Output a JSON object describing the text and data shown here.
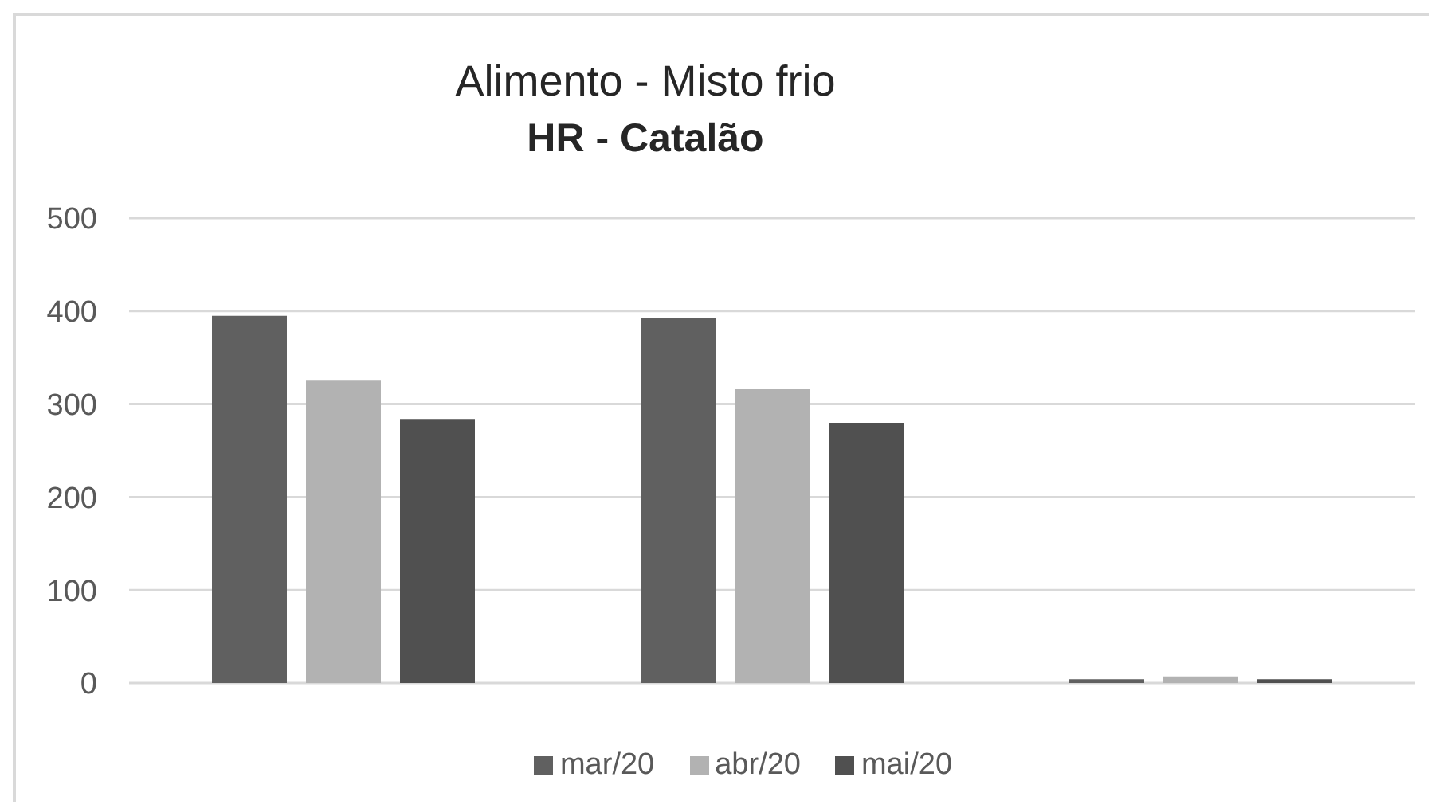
{
  "chart_data": {
    "type": "bar",
    "title": "Alimento - Misto frio",
    "subtitle": "HR - Catalão",
    "categories": [
      null,
      null,
      null
    ],
    "series": [
      {
        "name": "mar/20",
        "color": "#606060",
        "values": [
          395,
          393,
          4
        ]
      },
      {
        "name": "abr/20",
        "color": "#b2b2b2",
        "values": [
          326,
          316,
          7
        ]
      },
      {
        "name": "mai/20",
        "color": "#505050",
        "values": [
          284,
          280,
          4
        ]
      }
    ],
    "ylim": [
      0,
      500
    ],
    "yticks": [
      0,
      100,
      200,
      300,
      400,
      500
    ],
    "grid": "y",
    "legend": "bottom"
  }
}
